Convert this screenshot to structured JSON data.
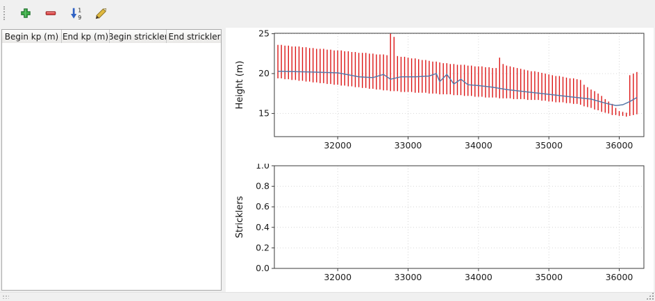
{
  "window": {
    "bg": "#f0f0f0"
  },
  "toolbar": {
    "buttons": [
      {
        "name": "add",
        "icon": "plus-icon"
      },
      {
        "name": "remove",
        "icon": "minus-icon"
      },
      {
        "name": "sort",
        "icon": "sort-numeric-icon"
      },
      {
        "name": "edit",
        "icon": "edit-pencil-icon"
      }
    ]
  },
  "table": {
    "columns": [
      "Begin kp (m)",
      "End kp (m)",
      "Begin strickler",
      "End strickler"
    ],
    "rows": []
  },
  "chart_data": [
    {
      "type": "bar",
      "title": "",
      "xlabel": "",
      "ylabel": "Height (m)",
      "xlim": [
        31100,
        36350
      ],
      "ylim": [
        12.1,
        25.05
      ],
      "xticks": [
        32000,
        33000,
        34000,
        35000,
        36000
      ],
      "xticklabels": [
        "32000",
        "33000",
        "34000",
        "35000",
        "36000"
      ],
      "yticks": [
        15,
        20,
        25
      ],
      "yticklabels": [
        "15",
        "20",
        "25"
      ],
      "grid": true,
      "legend": "none",
      "bar_color": "#dc1414",
      "line_color": "#5878a8",
      "bars": {
        "x_start": 31150,
        "x_step": 50,
        "top": [
          23.6,
          23.6,
          23.5,
          23.5,
          23.4,
          23.4,
          23.4,
          23.3,
          23.3,
          23.2,
          23.2,
          23.1,
          23.1,
          23.1,
          23.0,
          23.0,
          22.9,
          22.9,
          22.9,
          22.8,
          22.8,
          22.7,
          22.7,
          22.6,
          22.6,
          22.6,
          22.5,
          22.5,
          22.4,
          22.4,
          22.4,
          22.3,
          25.0,
          24.6,
          22.2,
          22.1,
          22.1,
          22.0,
          21.9,
          21.9,
          21.8,
          21.7,
          21.7,
          21.6,
          21.5,
          21.5,
          21.4,
          21.3,
          21.3,
          21.2,
          21.2,
          21.1,
          21.1,
          21.1,
          21.0,
          21.0,
          20.9,
          20.9,
          20.9,
          20.8,
          20.8,
          20.7,
          20.7,
          22.0,
          21.2,
          21.0,
          20.9,
          20.8,
          20.7,
          20.6,
          20.5,
          20.4,
          20.3,
          20.3,
          20.2,
          20.1,
          20.0,
          19.9,
          19.8,
          19.7,
          19.7,
          19.6,
          19.5,
          19.4,
          19.4,
          19.3,
          19.2,
          18.6,
          18.3,
          18.0,
          17.8,
          17.5,
          17.2,
          16.8,
          16.5,
          16.2,
          15.7,
          15.3,
          15.2,
          15.1,
          19.8,
          20.0,
          20.2
        ],
        "bottom": [
          19.4,
          19.4,
          19.3,
          19.3,
          19.2,
          19.2,
          19.1,
          19.1,
          19.0,
          19.0,
          18.9,
          18.9,
          18.8,
          18.8,
          18.7,
          18.7,
          18.6,
          18.6,
          18.5,
          18.5,
          18.4,
          18.4,
          18.3,
          18.3,
          18.2,
          18.2,
          18.1,
          18.1,
          18.0,
          18.0,
          17.9,
          17.9,
          17.8,
          17.8,
          17.8,
          17.7,
          17.7,
          17.7,
          17.7,
          17.6,
          17.6,
          17.6,
          17.6,
          17.5,
          17.5,
          17.5,
          17.4,
          17.4,
          17.4,
          17.4,
          17.3,
          17.3,
          17.3,
          17.2,
          17.2,
          17.2,
          17.1,
          17.1,
          17.1,
          17.0,
          17.0,
          17.0,
          17.0,
          16.9,
          16.9,
          16.9,
          16.9,
          16.8,
          16.8,
          16.8,
          16.8,
          16.7,
          16.7,
          16.7,
          16.7,
          16.6,
          16.6,
          16.5,
          16.5,
          16.4,
          16.4,
          16.4,
          16.3,
          16.3,
          16.2,
          16.2,
          16.1,
          15.9,
          15.8,
          15.7,
          15.5,
          15.4,
          15.2,
          15.1,
          15.0,
          14.8,
          14.8,
          14.7,
          14.7,
          14.6,
          14.7,
          14.8,
          14.9
        ]
      },
      "line": {
        "x": [
          31150,
          31600,
          32000,
          32300,
          32500,
          32650,
          32750,
          32900,
          33100,
          33300,
          33400,
          33450,
          33550,
          33650,
          33750,
          33850,
          34000,
          34200,
          34400,
          34700,
          35000,
          35300,
          35600,
          35800,
          35950,
          36050,
          36150,
          36250
        ],
        "y": [
          20.3,
          20.2,
          20.1,
          19.6,
          19.5,
          19.9,
          19.3,
          19.6,
          19.6,
          19.7,
          20.0,
          19.0,
          19.9,
          18.7,
          19.3,
          18.6,
          18.5,
          18.3,
          18.0,
          17.7,
          17.4,
          17.1,
          16.8,
          16.3,
          16.0,
          16.1,
          16.5,
          17.0
        ]
      }
    },
    {
      "type": "bar",
      "title": "",
      "xlabel": "",
      "ylabel": "Stricklers",
      "xlim": [
        31100,
        36350
      ],
      "ylim": [
        0.0,
        1.0
      ],
      "xticks": [
        32000,
        33000,
        34000,
        35000,
        36000
      ],
      "xticklabels": [
        "32000",
        "33000",
        "34000",
        "35000",
        "36000"
      ],
      "yticks": [
        0.0,
        0.2,
        0.4,
        0.6,
        0.8,
        1.0
      ],
      "yticklabels": [
        "0.0",
        "0.2",
        "0.4",
        "0.6",
        "0.8",
        "1.0"
      ],
      "grid": true,
      "legend": "none"
    }
  ]
}
